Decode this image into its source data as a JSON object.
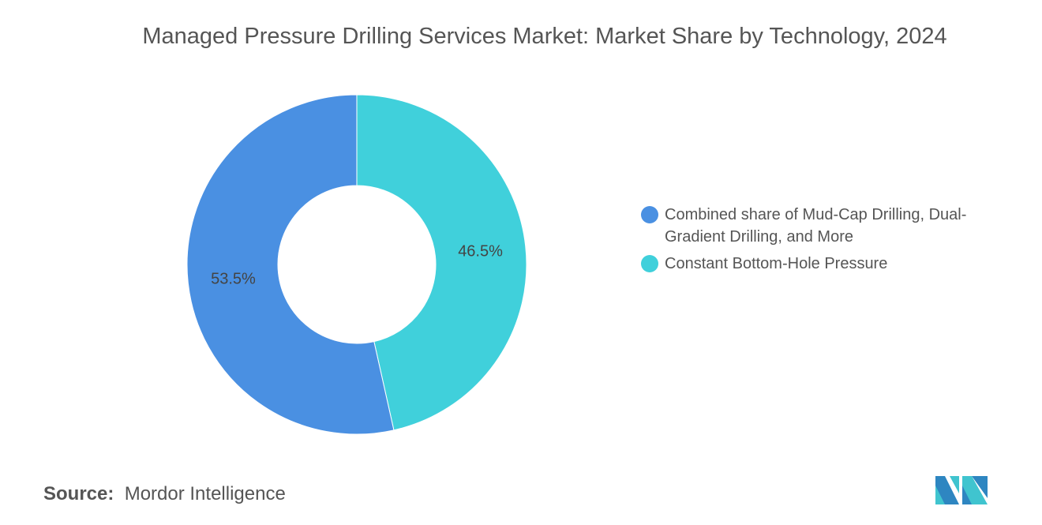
{
  "chart_data": {
    "type": "pie",
    "variant": "donut",
    "title": "Managed Pressure Drilling Services Market: Market Share by Technology, 2024",
    "slices": [
      {
        "label": "Constant Bottom-Hole Pressure",
        "value": 46.5,
        "display": "46.5%",
        "color": "#40D0DB"
      },
      {
        "label": "Combined share of Mud-Cap Drilling, Dual-Gradient Drilling, and More",
        "value": 53.5,
        "display": "53.5%",
        "color": "#4A90E2"
      }
    ],
    "legend": [
      {
        "label": "Combined share of Mud-Cap Drilling, Dual-Gradient Drilling, and More",
        "color": "#4A90E2"
      },
      {
        "label": "Constant Bottom-Hole Pressure",
        "color": "#40D0DB"
      }
    ],
    "legend_position": "right"
  },
  "source": {
    "label": "Source:",
    "value": "Mordor Intelligence"
  },
  "logo": {
    "text": "Mordor Intelligence"
  }
}
